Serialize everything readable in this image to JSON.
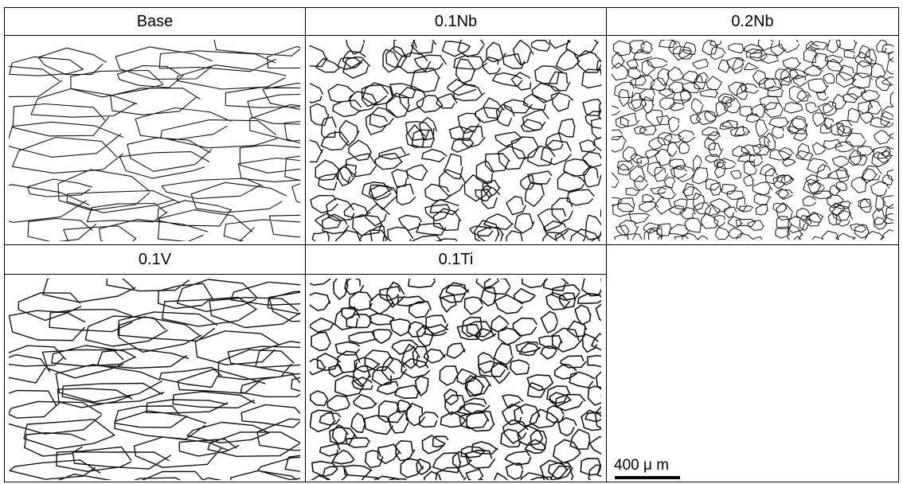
{
  "panels": [
    {
      "label": "Base"
    },
    {
      "label": "0.1Nb"
    },
    {
      "label": "0.2Nb"
    },
    {
      "label": "0.1V"
    },
    {
      "label": "0.1Ti"
    }
  ],
  "scale_bar": {
    "label": "400 μ m"
  }
}
